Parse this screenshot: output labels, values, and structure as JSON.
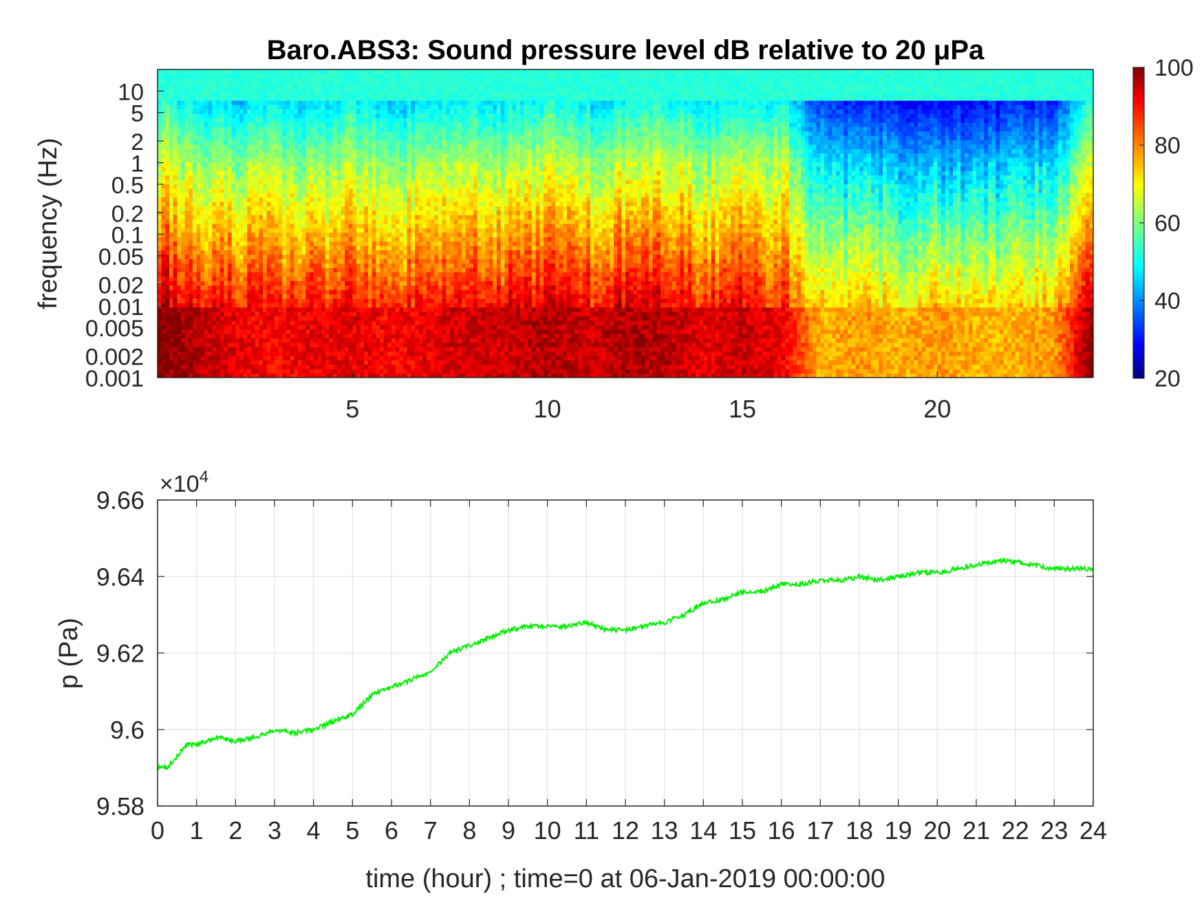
{
  "chart_data": [
    {
      "type": "heatmap",
      "title": "Baro.ABS3: Sound pressure level dB relative to 20 μPa",
      "ylabel": "frequency (Hz)",
      "xlabel": "",
      "x_ticks": [
        "5",
        "10",
        "15",
        "20"
      ],
      "x_tick_values": [
        5,
        10,
        15,
        20
      ],
      "xlim": [
        0,
        24
      ],
      "y_scale": "log",
      "y_ticks": [
        "10",
        "5",
        "2",
        "1",
        "0.5",
        "0.2",
        "0.1",
        "0.05",
        "0.02",
        "0.01",
        "0.005",
        "0.002",
        "0.001"
      ],
      "y_tick_values": [
        10,
        5,
        2,
        1,
        0.5,
        0.2,
        0.1,
        0.05,
        0.02,
        0.01,
        0.005,
        0.002,
        0.001
      ],
      "ylim": [
        0.001,
        20
      ],
      "colorbar": {
        "range": [
          20,
          100
        ],
        "ticks": [
          "100",
          "80",
          "60",
          "40",
          "20"
        ],
        "tick_values": [
          100,
          80,
          60,
          40,
          20
        ],
        "colormap": "jet"
      },
      "description_levels": {
        "time_hours": [
          0,
          1,
          2,
          3,
          4,
          5,
          6,
          7,
          8,
          9,
          10,
          11,
          12,
          13,
          14,
          15,
          16,
          17,
          18,
          19,
          20,
          21,
          22,
          23,
          24
        ],
        "spl_at_0_01Hz_dB": [
          96,
          92,
          88,
          86,
          88,
          88,
          86,
          88,
          90,
          90,
          92,
          90,
          92,
          92,
          88,
          90,
          88,
          72,
          74,
          72,
          74,
          72,
          72,
          74,
          96
        ],
        "spl_at_1Hz_dB": [
          68,
          64,
          60,
          62,
          60,
          64,
          60,
          62,
          64,
          62,
          66,
          62,
          64,
          66,
          62,
          64,
          66,
          48,
          46,
          46,
          44,
          44,
          46,
          46,
          70
        ]
      },
      "grid": false
    },
    {
      "type": "line",
      "xlabel": "time (hour) ; time=0 at 06-Jan-2019 00:00:00",
      "ylabel": "p (Pa)",
      "y_exponent_label": "×10",
      "y_exponent_power": "4",
      "x_ticks": [
        "0",
        "1",
        "2",
        "3",
        "4",
        "5",
        "6",
        "7",
        "8",
        "9",
        "10",
        "11",
        "12",
        "13",
        "14",
        "15",
        "16",
        "17",
        "18",
        "19",
        "20",
        "21",
        "22",
        "23",
        "24"
      ],
      "y_ticks": [
        "9.66",
        "9.64",
        "9.62",
        "9.6",
        "9.58"
      ],
      "y_tick_values": [
        9.66,
        9.64,
        9.62,
        9.6,
        9.58
      ],
      "xlim": [
        0,
        24
      ],
      "ylim": [
        9.58,
        9.66
      ],
      "grid": true,
      "series": [
        {
          "color": "#00ee00",
          "x": [
            0,
            0.25,
            0.5,
            0.75,
            1,
            1.5,
            2,
            2.5,
            3,
            3.5,
            4,
            4.5,
            5,
            5.5,
            6,
            6.5,
            7,
            7.5,
            8,
            8.5,
            9,
            9.5,
            10,
            10.5,
            11,
            11.5,
            12,
            12.5,
            13,
            13.5,
            14,
            14.5,
            15,
            15.5,
            16,
            16.5,
            17,
            17.5,
            18,
            18.5,
            19,
            19.5,
            20,
            20.5,
            21,
            21.5,
            22,
            22.5,
            23,
            23.5,
            24
          ],
          "y": [
            9.59,
            9.59,
            9.593,
            9.596,
            9.596,
            9.598,
            9.597,
            9.598,
            9.6,
            9.599,
            9.6,
            9.602,
            9.604,
            9.609,
            9.611,
            9.613,
            9.615,
            9.62,
            9.622,
            9.624,
            9.626,
            9.627,
            9.627,
            9.627,
            9.628,
            9.626,
            9.626,
            9.627,
            9.628,
            9.63,
            9.633,
            9.634,
            9.636,
            9.636,
            9.638,
            9.638,
            9.639,
            9.639,
            9.64,
            9.639,
            9.64,
            9.641,
            9.641,
            9.642,
            9.643,
            9.644,
            9.644,
            9.643,
            9.642,
            9.642,
            9.642
          ]
        }
      ]
    }
  ]
}
